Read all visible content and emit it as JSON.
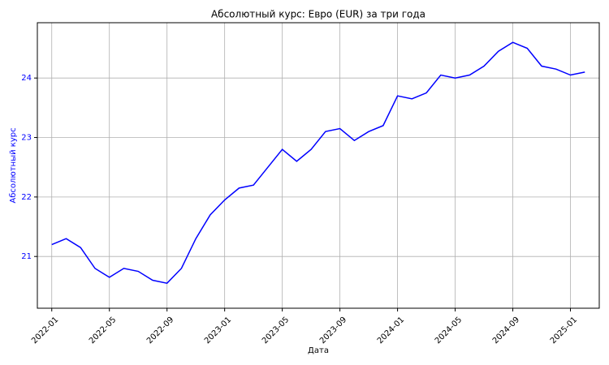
{
  "chart_data": {
    "type": "line",
    "title": "Абсолютный курс: Евро (EUR) за три года",
    "xlabel": "Дата",
    "ylabel": "Абсолютный курс",
    "x": [
      "2022-01",
      "2022-02",
      "2022-03",
      "2022-04",
      "2022-05",
      "2022-06",
      "2022-07",
      "2022-08",
      "2022-09",
      "2022-10",
      "2022-11",
      "2022-12",
      "2023-01",
      "2023-02",
      "2023-03",
      "2023-04",
      "2023-05",
      "2023-06",
      "2023-07",
      "2023-08",
      "2023-09",
      "2023-10",
      "2023-11",
      "2023-12",
      "2024-01",
      "2024-02",
      "2024-03",
      "2024-04",
      "2024-05",
      "2024-06",
      "2024-07",
      "2024-08",
      "2024-09",
      "2024-10",
      "2024-11",
      "2024-12",
      "2025-01",
      "2025-02"
    ],
    "series": [
      {
        "name": "EUR",
        "color": "#0000ff",
        "values": [
          21.2,
          21.3,
          21.15,
          20.8,
          20.65,
          20.8,
          20.75,
          20.6,
          20.55,
          20.8,
          21.3,
          21.7,
          21.95,
          22.15,
          22.2,
          22.5,
          22.8,
          22.6,
          22.8,
          23.1,
          23.15,
          22.95,
          23.1,
          23.2,
          23.7,
          23.65,
          23.75,
          24.05,
          24.0,
          24.05,
          24.2,
          24.45,
          24.6,
          24.5,
          24.2,
          24.15,
          24.05,
          24.1
        ]
      }
    ],
    "xlim": [
      "2021-12",
      "2025-03"
    ],
    "xticks": [
      "2022-01",
      "2022-05",
      "2022-09",
      "2023-01",
      "2023-05",
      "2023-09",
      "2024-01",
      "2024-05",
      "2024-09",
      "2025-01"
    ],
    "ylim": [
      20.13,
      24.93
    ],
    "yticks": [
      21,
      22,
      23,
      24
    ],
    "ylabel_color": "#0000ff",
    "grid": true
  }
}
